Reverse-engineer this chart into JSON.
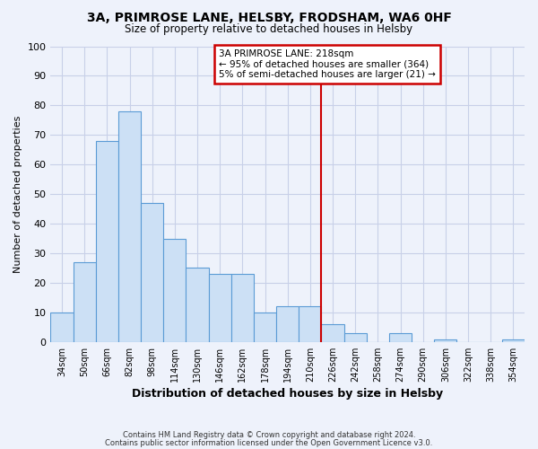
{
  "title": "3A, PRIMROSE LANE, HELSBY, FRODSHAM, WA6 0HF",
  "subtitle": "Size of property relative to detached houses in Helsby",
  "xlabel": "Distribution of detached houses by size in Helsby",
  "ylabel": "Number of detached properties",
  "footnote1": "Contains HM Land Registry data © Crown copyright and database right 2024.",
  "footnote2": "Contains public sector information licensed under the Open Government Licence v3.0.",
  "categories": [
    "34sqm",
    "50sqm",
    "66sqm",
    "82sqm",
    "98sqm",
    "114sqm",
    "130sqm",
    "146sqm",
    "162sqm",
    "178sqm",
    "194sqm",
    "210sqm",
    "226sqm",
    "242sqm",
    "258sqm",
    "274sqm",
    "290sqm",
    "306sqm",
    "322sqm",
    "338sqm",
    "354sqm"
  ],
  "values": [
    10,
    27,
    68,
    78,
    47,
    35,
    25,
    23,
    23,
    10,
    12,
    12,
    6,
    3,
    0,
    3,
    0,
    1,
    0,
    0,
    1
  ],
  "bar_color": "#cce0f5",
  "bar_edge_color": "#5b9bd5",
  "background_color": "#eef2fb",
  "grid_color": "#c8d0e8",
  "annotation_title": "3A PRIMROSE LANE: 218sqm",
  "annotation_line1": "← 95% of detached houses are smaller (364)",
  "annotation_line2": "5% of semi-detached houses are larger (21) →",
  "vline_x_index": 11.5,
  "vline_color": "#cc0000",
  "annotation_box_color": "#cc0000",
  "ylim": [
    0,
    100
  ],
  "yticks": [
    0,
    10,
    20,
    30,
    40,
    50,
    60,
    70,
    80,
    90,
    100
  ]
}
